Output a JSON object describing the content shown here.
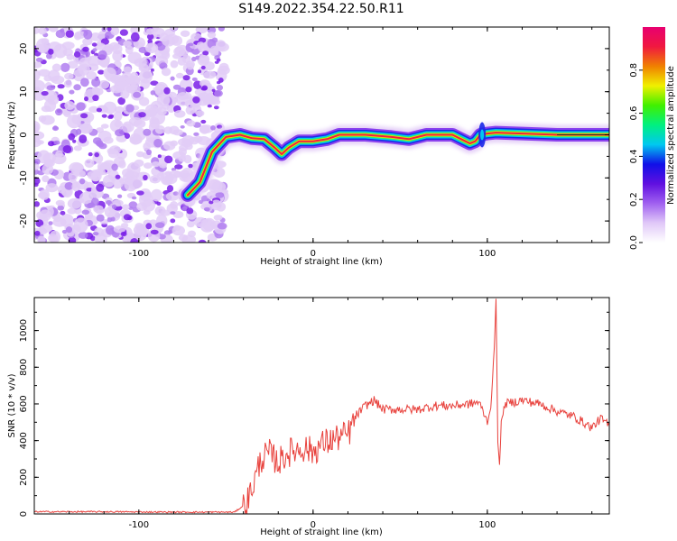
{
  "title": "S149.2022.354.22.50.R11",
  "chart_data": [
    {
      "type": "heatmap",
      "name": "spectrogram",
      "xlabel": "Height of straight line (km)",
      "ylabel": "Frequency (Hz)",
      "xlim": [
        -160,
        170
      ],
      "ylim": [
        -25,
        25
      ],
      "xticks": [
        -100,
        0,
        100
      ],
      "yticks": [
        -20,
        -10,
        0,
        10,
        20
      ],
      "colorbar": {
        "label": "Normalized spectral amplitude",
        "range": [
          0,
          1
        ],
        "ticks": [
          "0.0",
          "0.2",
          "0.4",
          "0.6",
          "0.8"
        ],
        "tick_values": [
          0,
          0.2,
          0.4,
          0.6,
          0.8
        ],
        "colormap": [
          "#ffffff",
          "#e0c8f8",
          "#a060f0",
          "#6010e0",
          "#1010e8",
          "#00c8f0",
          "#00f080",
          "#40f000",
          "#f0f000",
          "#f08000",
          "#f01840",
          "#e80070"
        ]
      },
      "noise_region_x": [
        -160,
        -55
      ],
      "ridge": [
        [
          -72,
          -14
        ],
        [
          -65,
          -11
        ],
        [
          -58,
          -4
        ],
        [
          -50,
          -0.5
        ],
        [
          -42,
          0
        ],
        [
          -35,
          -0.8
        ],
        [
          -28,
          -1
        ],
        [
          -22,
          -3
        ],
        [
          -18,
          -4.5
        ],
        [
          -14,
          -3
        ],
        [
          -8,
          -1.5
        ],
        [
          0,
          -1.5
        ],
        [
          8,
          -1
        ],
        [
          15,
          0
        ],
        [
          30,
          0
        ],
        [
          45,
          -0.5
        ],
        [
          55,
          -1
        ],
        [
          65,
          0
        ],
        [
          80,
          0
        ],
        [
          85,
          -1
        ],
        [
          90,
          -2
        ],
        [
          93,
          -1.5
        ],
        [
          96,
          0
        ],
        [
          100,
          0.3
        ],
        [
          105,
          0.5
        ],
        [
          120,
          0.3
        ],
        [
          140,
          0
        ],
        [
          170,
          0
        ]
      ]
    },
    {
      "type": "line",
      "name": "snr",
      "xlabel": "Height of straight line (km)",
      "ylabel": "SNR (10 * v/v)",
      "xlim": [
        -160,
        170
      ],
      "ylim": [
        0,
        1180
      ],
      "xticks": [
        -100,
        0,
        100
      ],
      "yticks": [
        0,
        200,
        400,
        600,
        800,
        1000
      ],
      "color": "#e8413c",
      "series": [
        {
          "name": "SNR",
          "points": [
            [
              -160,
              12
            ],
            [
              -120,
              12
            ],
            [
              -80,
              10
            ],
            [
              -45,
              10
            ],
            [
              -38,
              60
            ],
            [
              -33,
              200
            ],
            [
              -30,
              300
            ],
            [
              -25,
              330
            ],
            [
              -20,
              280
            ],
            [
              -15,
              330
            ],
            [
              -10,
              350
            ],
            [
              -5,
              360
            ],
            [
              0,
              340
            ],
            [
              5,
              380
            ],
            [
              10,
              400
            ],
            [
              15,
              420
            ],
            [
              20,
              430
            ],
            [
              25,
              540
            ],
            [
              30,
              590
            ],
            [
              35,
              620
            ],
            [
              40,
              570
            ],
            [
              50,
              570
            ],
            [
              60,
              570
            ],
            [
              70,
              590
            ],
            [
              80,
              590
            ],
            [
              90,
              600
            ],
            [
              95,
              610
            ],
            [
              98,
              550
            ],
            [
              100,
              500
            ],
            [
              102,
              580
            ],
            [
              104,
              900
            ],
            [
              105,
              1180
            ],
            [
              106,
              400
            ],
            [
              107,
              260
            ],
            [
              108,
              500
            ],
            [
              110,
              600
            ],
            [
              120,
              620
            ],
            [
              130,
              600
            ],
            [
              140,
              560
            ],
            [
              150,
              530
            ],
            [
              160,
              470
            ],
            [
              165,
              520
            ],
            [
              170,
              480
            ]
          ]
        }
      ]
    }
  ]
}
